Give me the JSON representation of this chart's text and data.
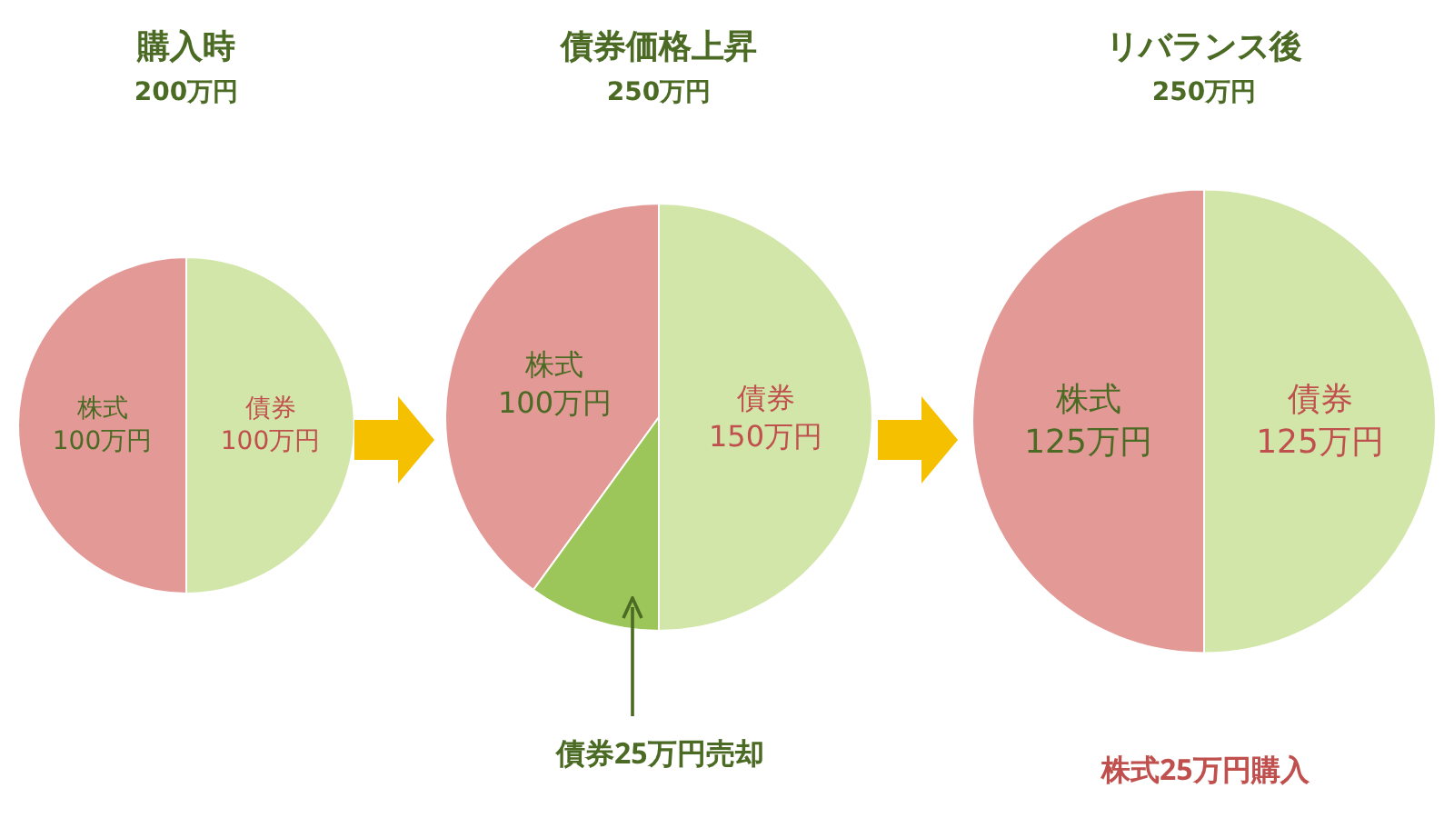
{
  "chart_data": [
    {
      "type": "pie",
      "title": "購入時",
      "subtitle": "200万円",
      "categories": [
        "株式",
        "債券"
      ],
      "values": [
        100,
        100
      ],
      "colors": [
        "#e39a97",
        "#d2e6a9"
      ],
      "value_labels": [
        "100万円",
        "100万円"
      ]
    },
    {
      "type": "pie",
      "title": "債券価格上昇",
      "subtitle": "250万円",
      "categories": [
        "株式",
        null,
        "債券"
      ],
      "values": [
        100,
        25,
        125
      ],
      "colors": [
        "#e39a97",
        "#9cc55a",
        "#d2e6a9"
      ],
      "value_labels": [
        "100万円",
        null,
        null
      ],
      "annotations": [
        "150万円",
        "債券25万円売却"
      ]
    },
    {
      "type": "pie",
      "title": "リバランス後",
      "subtitle": "250万円",
      "categories": [
        "株式",
        "債券"
      ],
      "values": [
        125,
        125
      ],
      "colors": [
        "#e39a97",
        "#d2e6a9"
      ],
      "value_labels": [
        "125万円",
        "125万円"
      ],
      "annotations": [
        "株式25万円購入"
      ]
    }
  ]
}
